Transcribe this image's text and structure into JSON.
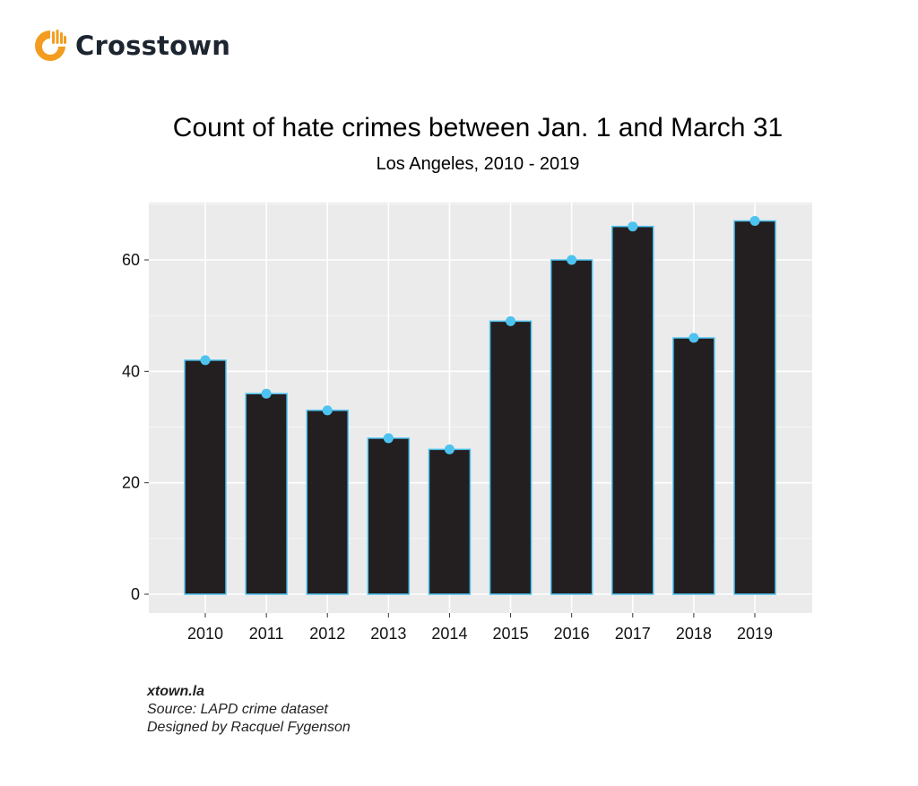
{
  "brand": {
    "name": "Crosstown",
    "logo_icon": "crosstown-logo-icon",
    "accent": "#f39c1f"
  },
  "chart_data": {
    "type": "bar",
    "title": "Count of hate crimes between Jan. 1 and March 31",
    "subtitle": "Los Angeles, 2010 - 2019",
    "categories": [
      "2010",
      "2011",
      "2012",
      "2013",
      "2014",
      "2015",
      "2016",
      "2017",
      "2018",
      "2019"
    ],
    "values": [
      42,
      36,
      33,
      28,
      26,
      49,
      60,
      66,
      46,
      67
    ],
    "xlabel": "",
    "ylabel": "",
    "ylim": [
      0,
      70
    ],
    "yticks": [
      "0",
      "20",
      "40",
      "60"
    ],
    "grid": true,
    "legend": "none",
    "colors": {
      "bar_fill": "#231f20",
      "bar_outline": "#4ec3f0",
      "point": "#4ec3f0",
      "panel": "#ebebeb",
      "gridline": "#ffffff"
    }
  },
  "footer": {
    "site": "xtown.la",
    "source": "Source: LAPD crime dataset",
    "credit": "Designed by Racquel Fygenson"
  }
}
